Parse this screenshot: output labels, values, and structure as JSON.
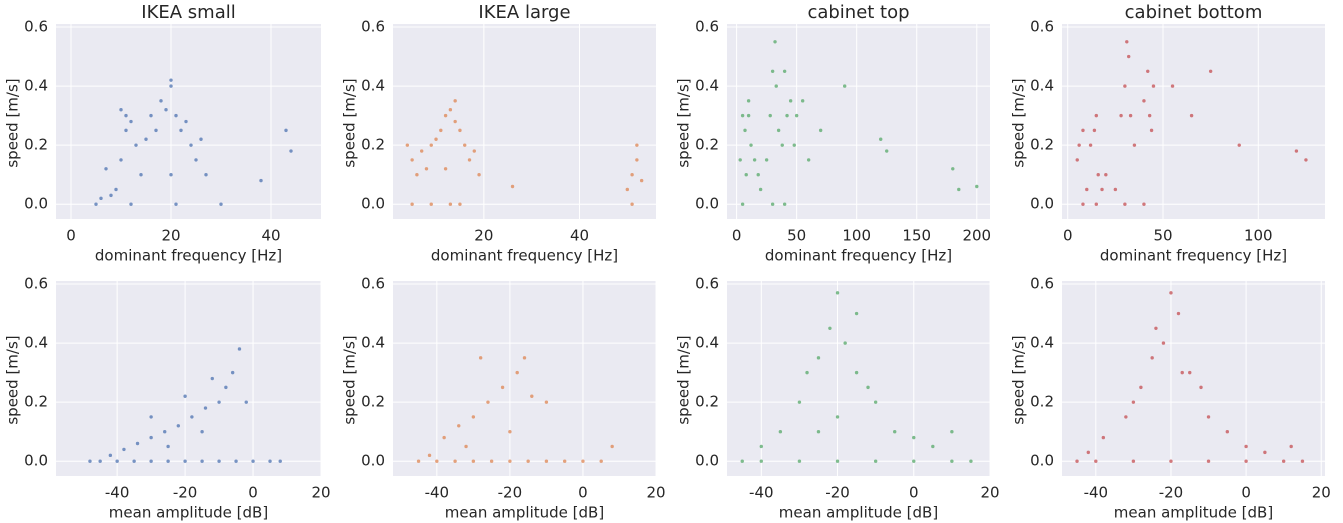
{
  "chart_data": [
    {
      "type": "scatter",
      "title": "IKEA small",
      "xlabel": "dominant frequency [Hz]",
      "ylabel": "speed [m/s]",
      "color": "#4c72b0",
      "xlim": [
        -3,
        50
      ],
      "xticks": [
        0,
        20,
        40
      ],
      "ylim": [
        -0.05,
        0.6
      ],
      "yticks": [
        {
          "value": 0,
          "label": "0.0"
        },
        0.2,
        0.4,
        0.6
      ],
      "grid": true,
      "x": [
        5,
        6,
        7,
        8,
        9,
        10,
        11,
        11,
        12,
        13,
        14,
        15,
        16,
        17,
        18,
        19,
        20,
        20,
        21,
        22,
        23,
        24,
        25,
        26,
        27,
        30,
        38,
        43,
        44,
        12,
        21,
        10,
        20
      ],
      "values": [
        0,
        0.02,
        0.12,
        0.03,
        0.05,
        0.15,
        0.25,
        0.3,
        0.28,
        0.2,
        0.1,
        0.22,
        0.3,
        0.25,
        0.35,
        0.32,
        0.4,
        0.1,
        0.3,
        0.25,
        0.28,
        0.2,
        0.15,
        0.22,
        0.1,
        0,
        0.08,
        0.25,
        0.18,
        0,
        0,
        0.32,
        0.42
      ]
    },
    {
      "type": "scatter",
      "title": "IKEA large",
      "xlabel": "dominant frequency [Hz]",
      "ylabel": "speed [m/s]",
      "color": "#dd8452",
      "xlim": [
        1,
        56
      ],
      "xticks": [
        20,
        40
      ],
      "ylim": [
        -0.05,
        0.6
      ],
      "yticks": [
        {
          "value": 0,
          "label": "0.0"
        },
        0.2,
        0.4,
        0.6
      ],
      "grid": true,
      "x": [
        4,
        5,
        6,
        7,
        8,
        9,
        10,
        11,
        12,
        13,
        14,
        15,
        16,
        17,
        18,
        19,
        5,
        9,
        13,
        15,
        26,
        50,
        51,
        52,
        53,
        51,
        52,
        12,
        14
      ],
      "values": [
        0.2,
        0.15,
        0.1,
        0.18,
        0.12,
        0.2,
        0.22,
        0.25,
        0.3,
        0.32,
        0.28,
        0.25,
        0.2,
        0.15,
        0.18,
        0.1,
        0,
        0,
        0,
        0,
        0.06,
        0.05,
        0.1,
        0.2,
        0.08,
        0,
        0.15,
        0.12,
        0.35
      ]
    },
    {
      "type": "scatter",
      "title": "cabinet top",
      "xlabel": "dominant frequency [Hz]",
      "ylabel": "speed [m/s]",
      "color": "#55a868",
      "xlim": [
        -8,
        211
      ],
      "xticks": [
        0,
        50,
        100,
        150,
        200
      ],
      "ylim": [
        -0.05,
        0.6
      ],
      "yticks": [
        {
          "value": 0,
          "label": "0.0"
        },
        0.2,
        0.4,
        0.6
      ],
      "grid": true,
      "x": [
        3,
        5,
        7,
        8,
        10,
        12,
        15,
        18,
        20,
        25,
        28,
        30,
        32,
        33,
        35,
        38,
        40,
        42,
        45,
        48,
        50,
        55,
        60,
        70,
        90,
        120,
        125,
        180,
        185,
        200,
        30,
        40,
        10,
        5
      ],
      "values": [
        0.15,
        0.3,
        0.25,
        0.1,
        0.3,
        0.2,
        0.15,
        0.1,
        0.05,
        0.15,
        0.3,
        0.45,
        0.55,
        0.4,
        0.25,
        0.2,
        0.45,
        0.3,
        0.35,
        0.2,
        0.3,
        0.35,
        0.15,
        0.25,
        0.4,
        0.22,
        0.18,
        0.12,
        0.05,
        0.06,
        0,
        0,
        0.35,
        0
      ]
    },
    {
      "type": "scatter",
      "title": "cabinet bottom",
      "xlabel": "dominant frequency [Hz]",
      "ylabel": "speed [m/s]",
      "color": "#c44e52",
      "xlim": [
        -3,
        135
      ],
      "xticks": [
        0,
        50,
        100
      ],
      "ylim": [
        -0.05,
        0.6
      ],
      "yticks": [
        {
          "value": 0,
          "label": "0.0"
        },
        0.2,
        0.4,
        0.6
      ],
      "grid": true,
      "x": [
        5,
        6,
        8,
        10,
        12,
        14,
        15,
        16,
        18,
        20,
        25,
        28,
        30,
        31,
        32,
        33,
        35,
        40,
        42,
        43,
        44,
        45,
        55,
        65,
        75,
        90,
        120,
        125,
        30,
        15,
        8,
        40
      ],
      "values": [
        0.15,
        0.2,
        0.25,
        0.05,
        0.2,
        0.25,
        0.3,
        0.1,
        0.05,
        0.1,
        0.05,
        0.3,
        0.4,
        0.55,
        0.5,
        0.3,
        0.2,
        0.35,
        0.45,
        0.3,
        0.25,
        0.4,
        0.4,
        0.3,
        0.45,
        0.2,
        0.18,
        0.15,
        0,
        0,
        0,
        0
      ]
    },
    {
      "type": "scatter",
      "xlabel": "mean amplitude [dB]",
      "ylabel": "speed [m/s]",
      "color": "#4c72b0",
      "xlim": [
        -58,
        20
      ],
      "xticks": [
        -40,
        -20,
        0,
        20
      ],
      "ylim": [
        -0.05,
        0.6
      ],
      "yticks": [
        {
          "value": 0,
          "label": "0.0"
        },
        0.2,
        0.4,
        0.6
      ],
      "grid": true,
      "x": [
        -48,
        -45,
        -40,
        -35,
        -30,
        -25,
        -20,
        -15,
        -10,
        -5,
        0,
        5,
        8,
        -42,
        -38,
        -34,
        -30,
        -26,
        -22,
        -18,
        -14,
        -10,
        -8,
        -6,
        -4,
        -2,
        -30,
        -20,
        -12,
        -25,
        -15
      ],
      "values": [
        0,
        0,
        0,
        0,
        0,
        0,
        0,
        0,
        0,
        0,
        0,
        0,
        0,
        0.02,
        0.04,
        0.06,
        0.08,
        0.1,
        0.12,
        0.15,
        0.18,
        0.2,
        0.25,
        0.3,
        0.38,
        0.2,
        0.15,
        0.22,
        0.28,
        0.05,
        0.1
      ]
    },
    {
      "type": "scatter",
      "xlabel": "mean amplitude [dB]",
      "ylabel": "speed [m/s]",
      "color": "#dd8452",
      "xlim": [
        -52,
        20
      ],
      "xticks": [
        -40,
        -20,
        0,
        20
      ],
      "ylim": [
        -0.05,
        0.6
      ],
      "yticks": [
        {
          "value": 0,
          "label": "0.0"
        },
        0.2,
        0.4,
        0.6
      ],
      "grid": true,
      "x": [
        -45,
        -40,
        -35,
        -30,
        -25,
        -20,
        -15,
        -10,
        -5,
        0,
        5,
        -42,
        -38,
        -34,
        -30,
        -26,
        -22,
        -18,
        -14,
        -10,
        -28,
        -20,
        -32,
        -16,
        8
      ],
      "values": [
        0,
        0,
        0,
        0,
        0,
        0,
        0,
        0,
        0,
        0,
        0,
        0.02,
        0.08,
        0.12,
        0.15,
        0.2,
        0.25,
        0.3,
        0.22,
        0.2,
        0.35,
        0.1,
        0.05,
        0.35,
        0.05
      ]
    },
    {
      "type": "scatter",
      "xlabel": "mean amplitude [dB]",
      "ylabel": "speed [m/s]",
      "color": "#55a868",
      "xlim": [
        -49,
        20
      ],
      "xticks": [
        -40,
        -20,
        0,
        20
      ],
      "ylim": [
        -0.05,
        0.6
      ],
      "yticks": [
        {
          "value": 0,
          "label": "0.0"
        },
        0.2,
        0.4,
        0.6
      ],
      "grid": true,
      "x": [
        -45,
        -40,
        -30,
        -20,
        -10,
        0,
        10,
        15,
        -40,
        -35,
        -30,
        -28,
        -25,
        -22,
        -20,
        -18,
        -15,
        -12,
        -10,
        -5,
        0,
        5,
        10,
        -20,
        -25,
        -15
      ],
      "values": [
        0,
        0,
        0,
        0,
        0,
        0,
        0,
        0,
        0.05,
        0.1,
        0.2,
        0.3,
        0.35,
        0.45,
        0.57,
        0.4,
        0.3,
        0.25,
        0.2,
        0.1,
        0.08,
        0.05,
        0.1,
        0.15,
        0.1,
        0.5
      ]
    },
    {
      "type": "scatter",
      "xlabel": "mean amplitude [dB]",
      "ylabel": "speed [m/s]",
      "color": "#c44e52",
      "xlim": [
        -49,
        21
      ],
      "xticks": [
        -40,
        -20,
        0,
        20
      ],
      "ylim": [
        -0.05,
        0.6
      ],
      "yticks": [
        {
          "value": 0,
          "label": "0.0"
        },
        0.2,
        0.4,
        0.6
      ],
      "grid": true,
      "x": [
        -45,
        -40,
        -30,
        -20,
        -10,
        0,
        10,
        15,
        -42,
        -38,
        -32,
        -28,
        -25,
        -22,
        -20,
        -18,
        -15,
        -12,
        -10,
        -5,
        0,
        5,
        12,
        -24,
        -30,
        -17
      ],
      "values": [
        0,
        0,
        0,
        0,
        0,
        0,
        0,
        0,
        0.03,
        0.08,
        0.15,
        0.25,
        0.35,
        0.4,
        0.57,
        0.5,
        0.3,
        0.25,
        0.15,
        0.1,
        0.05,
        0.03,
        0.05,
        0.45,
        0.2,
        0.3
      ]
    }
  ]
}
